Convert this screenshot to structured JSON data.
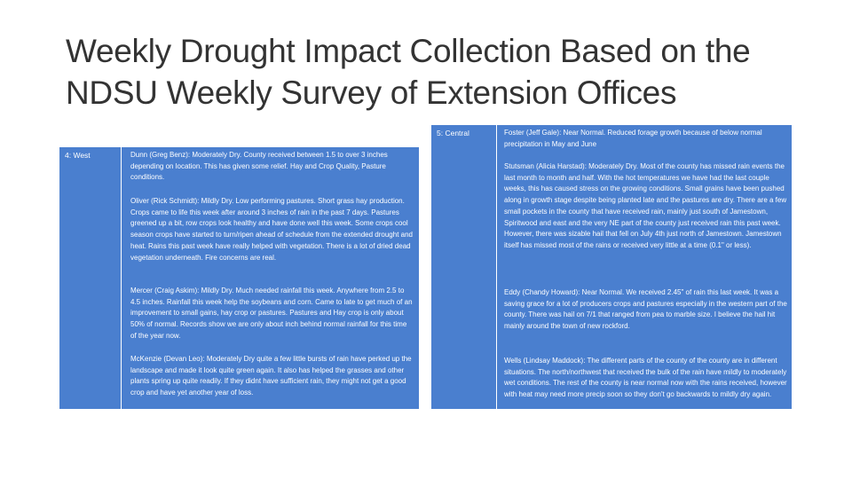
{
  "title": "Weekly Drought Impact Collection Based on the NDSU Weekly Survey of Extension Offices",
  "tables": [
    {
      "label": "4: West",
      "rows": [
        "Dunn (Greg Benz): Moderately Dry. County received between 1.5 to over 3 inches depending on location. This has given some relief. Hay and Crop Quality, Pasture conditions.",
        "Oliver (Rick Schmidt): Mildly Dry. Low performing pastures. Short grass hay production. Crops came to life this week after around 3 inches of rain in the past 7 days. Pastures greened up a bit, row crops look healthy and have done well this week. Some crops cool season crops have started to turn/ripen ahead of schedule from the extended drought and heat. Rains this past week have really helped with vegetation. There is a lot of dried dead vegetation underneath. Fire concerns are real.",
        "Mercer (Craig Askim): Mildly Dry. Much needed rainfall this week. Anywhere from 2.5 to 4.5 inches. Rainfall this week help the soybeans and corn. Came to late to get much of an improvement to small gains, hay crop or pastures. Pastures and Hay crop is only about 50% of normal. Records show we are only about inch behind normal rainfall for this time of the year now.",
        "McKenzie (Devan Leo): Moderately Dry quite a few little bursts of rain have perked up the landscape and made it look quite green again. It also has helped the grasses and other plants spring up quite readily. If they didnt have sufficient rain, they might not get a good crop and have yet another year of loss."
      ]
    },
    {
      "label": "5: Central",
      "rows": [
        "Foster (Jeff Gale): Near Normal. Reduced forage growth because of below normal precipitation in May and June",
        "Stutsman (Alicia Harstad): Moderately Dry. Most of the county has missed rain events the last month to month and half. With the hot temperatures we have had the last couple weeks, this has caused stress on the growing conditions. Small grains have been pushed along in growth stage despite being planted late and the pastures are dry. There are a few small pockets in the county that have received rain, mainly just south of Jamestown, Spiritwood and east and the very NE part of the county just received rain this past week. However, there was sizable hail that fell on July 4th just north of Jamestown. Jamestown itself has missed most of the rains or received very little at a time (0.1\" or less).",
        "Eddy (Chandy Howard): Near Normal. We received 2.45\" of rain this last week. It was a saving grace for a lot of producers crops and pastures especially in the western part of the county. There was hail on 7/1 that ranged from pea to marble size. I believe the hail hit mainly around the town of new rockford.",
        "Wells (Lindsay Maddock): The different parts of the county of the county are in different situations. The north/northwest that received the bulk of the rain have mildly to moderately wet conditions. The rest of the county is near normal now with the rains received, however with heat may need more precip soon so they don't go backwards to mildly dry again."
      ]
    }
  ]
}
